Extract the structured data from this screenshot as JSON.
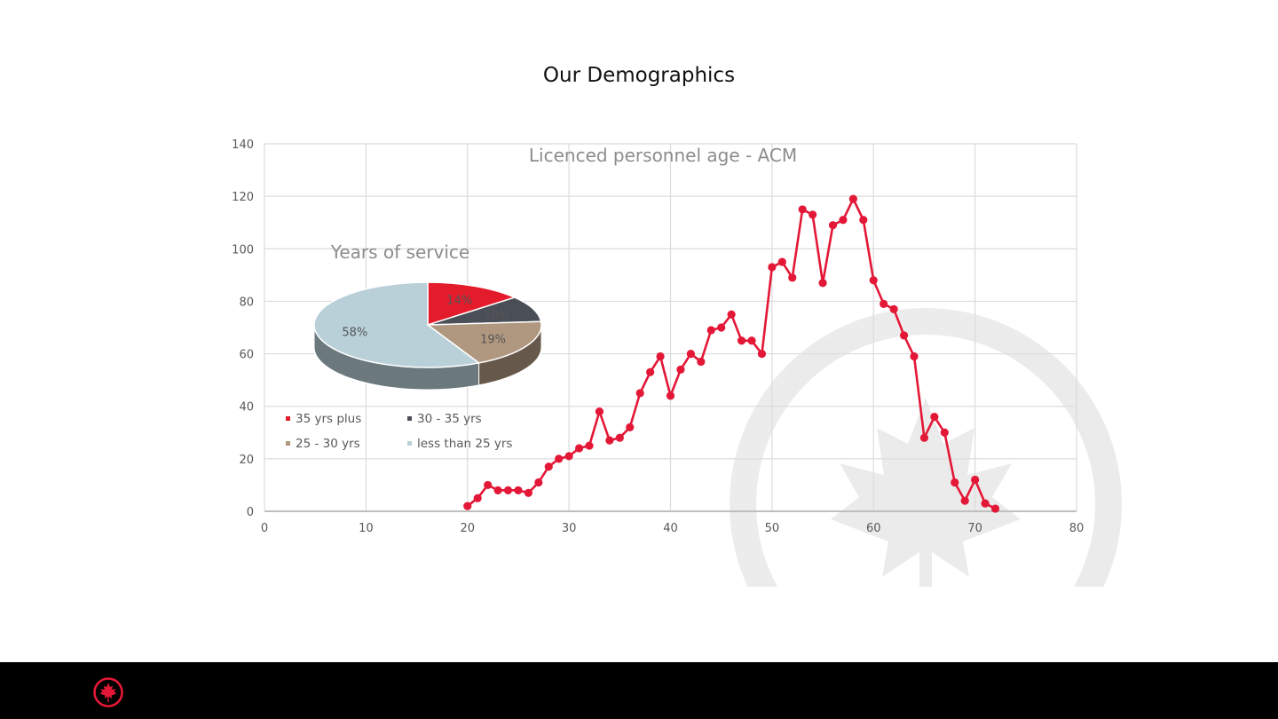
{
  "slide": {
    "title": "Our Demographics"
  },
  "colors": {
    "accent": "#e31837",
    "footer": "#000000"
  },
  "chart_data": [
    {
      "type": "line",
      "title": "Licenced personnel age - ACM",
      "xlabel": "",
      "ylabel": "",
      "xlim": [
        0,
        80
      ],
      "ylim": [
        0,
        140
      ],
      "x_ticks": [
        0,
        10,
        20,
        30,
        40,
        50,
        60,
        70,
        80
      ],
      "y_ticks": [
        0,
        20,
        40,
        60,
        80,
        100,
        120,
        140
      ],
      "grid": true,
      "series": [
        {
          "color": "#e31837",
          "x": [
            20,
            21,
            22,
            23,
            24,
            25,
            26,
            27,
            28,
            29,
            30,
            31,
            32,
            33,
            34,
            35,
            36,
            37,
            38,
            39,
            40,
            41,
            42,
            43,
            44,
            45,
            46,
            47,
            48,
            49,
            50,
            51,
            52,
            53,
            54,
            55,
            56,
            57,
            58,
            59,
            60,
            61,
            62,
            63,
            64,
            65,
            66,
            67,
            68,
            69,
            70,
            71,
            72
          ],
          "y": [
            2,
            5,
            10,
            8,
            8,
            8,
            7,
            11,
            17,
            20,
            21,
            24,
            25,
            38,
            27,
            28,
            32,
            45,
            53,
            59,
            44,
            54,
            60,
            57,
            69,
            70,
            75,
            65,
            65,
            60,
            93,
            95,
            89,
            115,
            113,
            87,
            109,
            111,
            119,
            111,
            88,
            79,
            77,
            67,
            59,
            28,
            36,
            30,
            11,
            4,
            12,
            3,
            1
          ]
        }
      ]
    },
    {
      "type": "pie",
      "title": "Years of service",
      "slices": [
        {
          "label": "35 yrs plus",
          "value": 14,
          "display": "14%",
          "color": "#e31b2b"
        },
        {
          "label": "30 - 35 yrs",
          "value": 10,
          "display": "10%",
          "color": "#4a4e56"
        },
        {
          "label": "25 - 30 yrs",
          "value": 19,
          "display": "19%",
          "color": "#b09880"
        },
        {
          "label": "less than 25 yrs",
          "value": 58,
          "display": "58%",
          "color": "#b9d0d9"
        }
      ],
      "legend_position": "bottom"
    }
  ]
}
